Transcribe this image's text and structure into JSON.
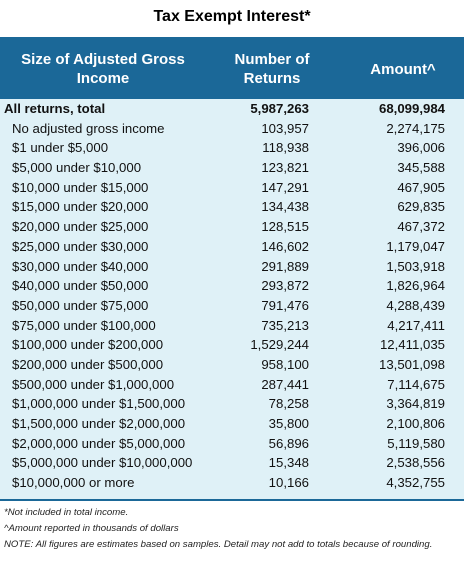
{
  "title": "Tax Exempt Interest*",
  "header": {
    "col1": "Size of Adjusted Gross Income",
    "col2": "Number of Returns",
    "col3": "Amount^"
  },
  "rows": [
    {
      "label": "All returns, total",
      "returns": "5,987,263",
      "amount": "68,099,984"
    },
    {
      "label": "No adjusted gross income",
      "returns": "103,957",
      "amount": "2,274,175"
    },
    {
      "label": "$1 under $5,000",
      "returns": "118,938",
      "amount": "396,006"
    },
    {
      "label": "$5,000 under $10,000",
      "returns": "123,821",
      "amount": "345,588"
    },
    {
      "label": "$10,000 under $15,000",
      "returns": "147,291",
      "amount": "467,905"
    },
    {
      "label": "$15,000 under $20,000",
      "returns": "134,438",
      "amount": "629,835"
    },
    {
      "label": "$20,000 under $25,000",
      "returns": "128,515",
      "amount": "467,372"
    },
    {
      "label": "$25,000 under $30,000",
      "returns": "146,602",
      "amount": "1,179,047"
    },
    {
      "label": "$30,000 under $40,000",
      "returns": "291,889",
      "amount": "1,503,918"
    },
    {
      "label": "$40,000 under $50,000",
      "returns": "293,872",
      "amount": "1,826,964"
    },
    {
      "label": "$50,000 under $75,000",
      "returns": "791,476",
      "amount": "4,288,439"
    },
    {
      "label": "$75,000 under $100,000",
      "returns": "735,213",
      "amount": "4,217,411"
    },
    {
      "label": "$100,000 under $200,000",
      "returns": "1,529,244",
      "amount": "12,411,035"
    },
    {
      "label": "$200,000 under $500,000",
      "returns": "958,100",
      "amount": "13,501,098"
    },
    {
      "label": "$500,000 under $1,000,000",
      "returns": "287,441",
      "amount": "7,114,675"
    },
    {
      "label": "$1,000,000 under $1,500,000",
      "returns": "78,258",
      "amount": "3,364,819"
    },
    {
      "label": "$1,500,000 under $2,000,000",
      "returns": "35,800",
      "amount": "2,100,806"
    },
    {
      "label": "$2,000,000 under $5,000,000",
      "returns": "56,896",
      "amount": "5,119,580"
    },
    {
      "label": "$5,000,000 under $10,000,000",
      "returns": "15,348",
      "amount": "2,538,556"
    },
    {
      "label": "$10,000,000 or more",
      "returns": "10,166",
      "amount": "4,352,755"
    }
  ],
  "notes": [
    "*Not included in total income.",
    "^Amount reported in thousands of dollars",
    "NOTE: All figures are estimates based on samples. Detail may not add to totals because of rounding."
  ],
  "colors": {
    "header_bg": "#1b6898",
    "row_bg": "#dff1f7"
  }
}
